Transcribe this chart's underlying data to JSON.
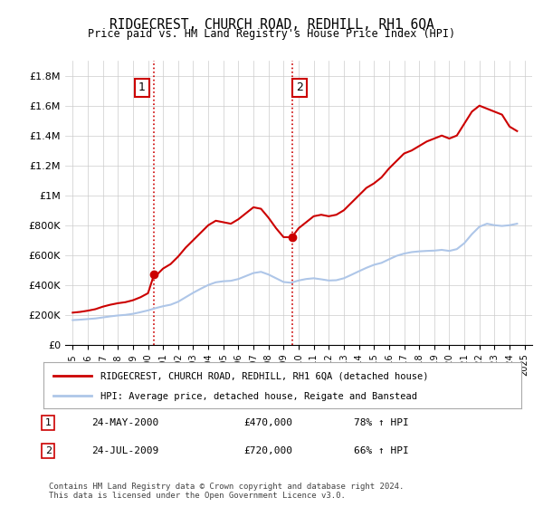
{
  "title": "RIDGECREST, CHURCH ROAD, REDHILL, RH1 6QA",
  "subtitle": "Price paid vs. HM Land Registry's House Price Index (HPI)",
  "legend_line1": "RIDGECREST, CHURCH ROAD, REDHILL, RH1 6QA (detached house)",
  "legend_line2": "HPI: Average price, detached house, Reigate and Banstead",
  "annotation1": {
    "num": "1",
    "date": "24-MAY-2000",
    "price": "£470,000",
    "pct": "78% ↑ HPI",
    "x": 2000.4
  },
  "annotation2": {
    "num": "2",
    "date": "24-JUL-2009",
    "price": "£720,000",
    "pct": "66% ↑ HPI",
    "x": 2009.55
  },
  "footnote1": "Contains HM Land Registry data © Crown copyright and database right 2024.",
  "footnote2": "This data is licensed under the Open Government Licence v3.0.",
  "background_color": "#ffffff",
  "grid_color": "#cccccc",
  "hpi_color": "#aec6e8",
  "price_color": "#cc0000",
  "vline_color": "#cc0000",
  "annotation_box_color": "#cc0000",
  "ylim": [
    0,
    1900000
  ],
  "xlim": [
    1994.5,
    2025.5
  ],
  "hpi_data": {
    "years": [
      1995,
      1995.5,
      1996,
      1996.5,
      1997,
      1997.5,
      1998,
      1998.5,
      1999,
      1999.5,
      2000,
      2000.5,
      2001,
      2001.5,
      2002,
      2002.5,
      2003,
      2003.5,
      2004,
      2004.5,
      2005,
      2005.5,
      2006,
      2006.5,
      2007,
      2007.5,
      2008,
      2008.5,
      2009,
      2009.5,
      2010,
      2010.5,
      2011,
      2011.5,
      2012,
      2012.5,
      2013,
      2013.5,
      2014,
      2014.5,
      2015,
      2015.5,
      2016,
      2016.5,
      2017,
      2017.5,
      2018,
      2018.5,
      2019,
      2019.5,
      2020,
      2020.5,
      2021,
      2021.5,
      2022,
      2022.5,
      2023,
      2023.5,
      2024,
      2024.5
    ],
    "values": [
      165000,
      168000,
      172000,
      176000,
      183000,
      190000,
      196000,
      200000,
      207000,
      218000,
      230000,
      245000,
      258000,
      268000,
      288000,
      318000,
      348000,
      375000,
      400000,
      418000,
      425000,
      428000,
      440000,
      460000,
      480000,
      488000,
      470000,
      445000,
      420000,
      415000,
      430000,
      440000,
      445000,
      438000,
      430000,
      432000,
      445000,
      468000,
      492000,
      515000,
      535000,
      548000,
      572000,
      595000,
      610000,
      620000,
      625000,
      628000,
      630000,
      635000,
      628000,
      640000,
      680000,
      740000,
      790000,
      810000,
      800000,
      795000,
      800000,
      810000
    ]
  },
  "price_data": {
    "years": [
      1995,
      1995.5,
      1996,
      1996.5,
      1997,
      1997.5,
      1998,
      1998.5,
      1999,
      1999.5,
      2000,
      2000.4,
      2000.5,
      2001,
      2001.5,
      2002,
      2002.5,
      2003,
      2003.5,
      2004,
      2004.5,
      2005,
      2005.5,
      2006,
      2006.5,
      2007,
      2007.5,
      2008,
      2008.5,
      2009,
      2009.55,
      2009.7,
      2010,
      2010.5,
      2011,
      2011.5,
      2012,
      2012.5,
      2013,
      2013.5,
      2014,
      2014.5,
      2015,
      2015.5,
      2016,
      2016.5,
      2017,
      2017.5,
      2018,
      2018.5,
      2019,
      2019.5,
      2020,
      2020.5,
      2021,
      2021.5,
      2022,
      2022.5,
      2023,
      2023.5,
      2024,
      2024.5
    ],
    "values": [
      215000,
      220000,
      228000,
      238000,
      255000,
      268000,
      278000,
      285000,
      298000,
      318000,
      345000,
      470000,
      460000,
      510000,
      540000,
      590000,
      650000,
      700000,
      750000,
      800000,
      830000,
      820000,
      810000,
      840000,
      880000,
      920000,
      910000,
      850000,
      780000,
      720000,
      720000,
      740000,
      780000,
      820000,
      860000,
      870000,
      860000,
      870000,
      900000,
      950000,
      1000000,
      1050000,
      1080000,
      1120000,
      1180000,
      1230000,
      1280000,
      1300000,
      1330000,
      1360000,
      1380000,
      1400000,
      1380000,
      1400000,
      1480000,
      1560000,
      1600000,
      1580000,
      1560000,
      1540000,
      1460000,
      1430000
    ]
  },
  "yticks": [
    0,
    200000,
    400000,
    600000,
    800000,
    1000000,
    1200000,
    1400000,
    1600000,
    1800000
  ],
  "ytick_labels": [
    "£0",
    "£200K",
    "£400K",
    "£600K",
    "£800K",
    "£1M",
    "£1.2M",
    "£1.4M",
    "£1.6M",
    "£1.8M"
  ],
  "xticks": [
    1995,
    1996,
    1997,
    1998,
    1999,
    2000,
    2001,
    2002,
    2003,
    2004,
    2005,
    2006,
    2007,
    2008,
    2009,
    2010,
    2011,
    2012,
    2013,
    2014,
    2015,
    2016,
    2017,
    2018,
    2019,
    2020,
    2021,
    2022,
    2023,
    2024,
    2025
  ]
}
